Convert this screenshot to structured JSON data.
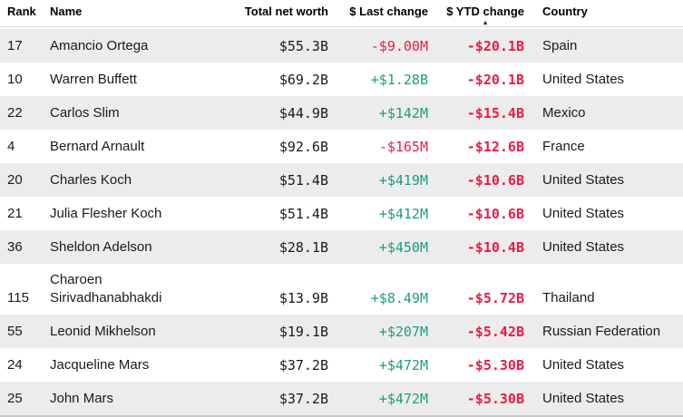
{
  "table": {
    "columns": [
      {
        "key": "rank",
        "label": "Rank"
      },
      {
        "key": "name",
        "label": "Name"
      },
      {
        "key": "net_worth",
        "label": "Total net worth"
      },
      {
        "key": "last_change",
        "label": "$ Last change"
      },
      {
        "key": "ytd_change",
        "label": "$ YTD change"
      },
      {
        "key": "country",
        "label": "Country"
      }
    ],
    "sort": {
      "column": "$ YTD change",
      "direction": "ascending",
      "icon": "▲"
    },
    "rows": [
      {
        "rank": "17",
        "name": "Amancio Ortega",
        "net_worth": "$55.3B",
        "last_change": "-$9.00M",
        "last_change_dir": "down",
        "ytd_change": "-$20.1B",
        "ytd_change_dir": "down",
        "country": "Spain"
      },
      {
        "rank": "10",
        "name": "Warren Buffett",
        "net_worth": "$69.2B",
        "last_change": "+$1.28B",
        "last_change_dir": "up",
        "ytd_change": "-$20.1B",
        "ytd_change_dir": "down",
        "country": "United States"
      },
      {
        "rank": "22",
        "name": "Carlos Slim",
        "net_worth": "$44.9B",
        "last_change": "+$142M",
        "last_change_dir": "up",
        "ytd_change": "-$15.4B",
        "ytd_change_dir": "down",
        "country": "Mexico"
      },
      {
        "rank": "4",
        "name": "Bernard Arnault",
        "net_worth": "$92.6B",
        "last_change": "-$165M",
        "last_change_dir": "down",
        "ytd_change": "-$12.6B",
        "ytd_change_dir": "down",
        "country": "France"
      },
      {
        "rank": "20",
        "name": "Charles Koch",
        "net_worth": "$51.4B",
        "last_change": "+$419M",
        "last_change_dir": "up",
        "ytd_change": "-$10.6B",
        "ytd_change_dir": "down",
        "country": "United States"
      },
      {
        "rank": "21",
        "name": "Julia Flesher Koch",
        "net_worth": "$51.4B",
        "last_change": "+$412M",
        "last_change_dir": "up",
        "ytd_change": "-$10.6B",
        "ytd_change_dir": "down",
        "country": "United States"
      },
      {
        "rank": "36",
        "name": "Sheldon Adelson",
        "net_worth": "$28.1B",
        "last_change": "+$450M",
        "last_change_dir": "up",
        "ytd_change": "-$10.4B",
        "ytd_change_dir": "down",
        "country": "United States"
      },
      {
        "rank": "115",
        "name": "Charoen Sirivadhanabhakdi",
        "net_worth": "$13.9B",
        "last_change": "+$8.49M",
        "last_change_dir": "up",
        "ytd_change": "-$5.72B",
        "ytd_change_dir": "down",
        "country": "Thailand"
      },
      {
        "rank": "55",
        "name": "Leonid Mikhelson",
        "net_worth": "$19.1B",
        "last_change": "+$207M",
        "last_change_dir": "up",
        "ytd_change": "-$5.42B",
        "ytd_change_dir": "down",
        "country": "Russian Federation"
      },
      {
        "rank": "24",
        "name": "Jacqueline Mars",
        "net_worth": "$37.2B",
        "last_change": "+$472M",
        "last_change_dir": "up",
        "ytd_change": "-$5.30B",
        "ytd_change_dir": "down",
        "country": "United States"
      },
      {
        "rank": "25",
        "name": "John Mars",
        "net_worth": "$37.2B",
        "last_change": "+$472M",
        "last_change_dir": "up",
        "ytd_change": "-$5.30B",
        "ytd_change_dir": "down",
        "country": "United States"
      }
    ]
  },
  "colors": {
    "positive_green": "#1a9d82",
    "negative_red": "#ed1a45",
    "stripe_gray": "#ececec"
  }
}
